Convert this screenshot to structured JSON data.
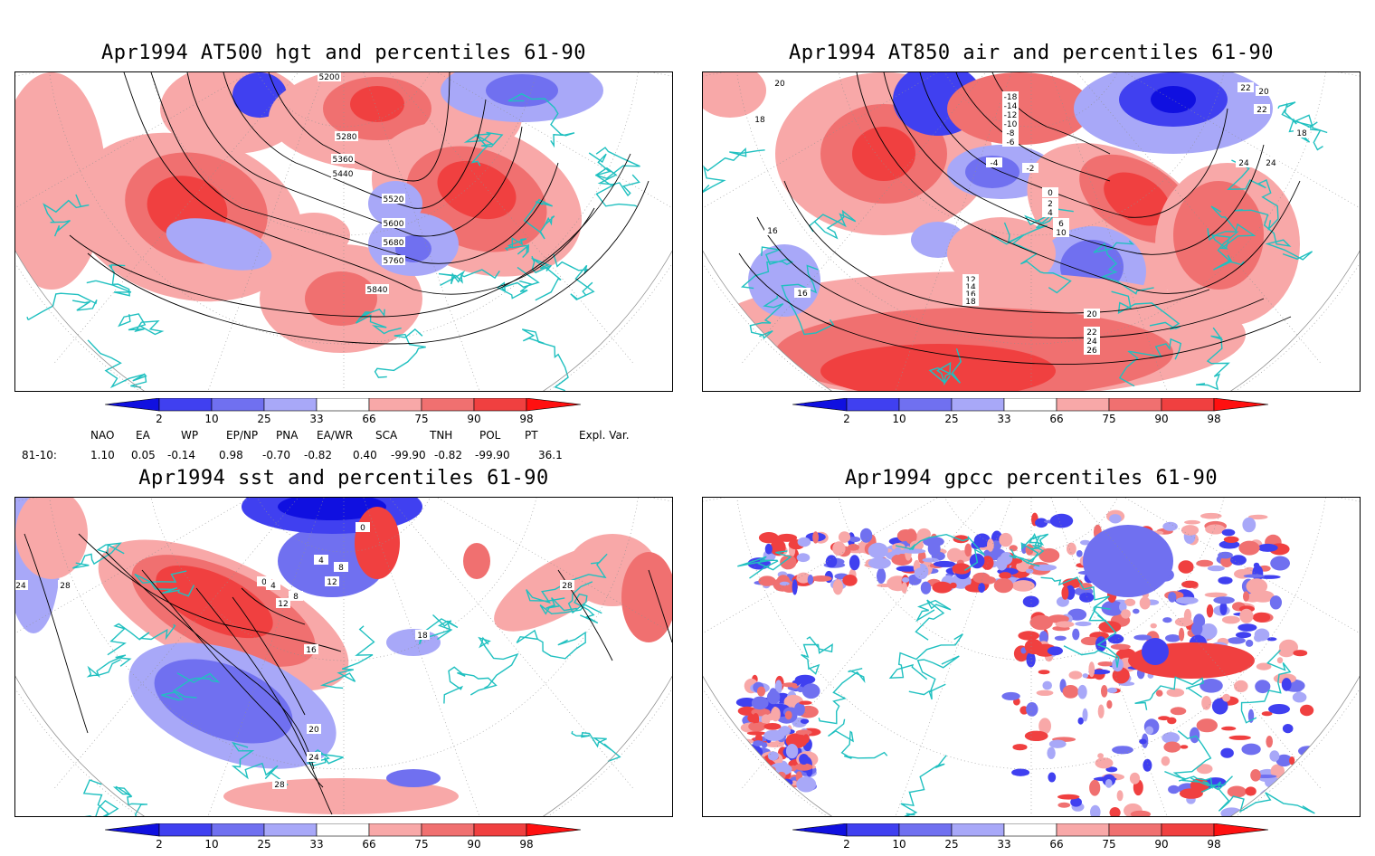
{
  "panels": [
    {
      "id": "hgt",
      "title": "Apr1994 AT500 hgt and percentiles 61-90",
      "contour_labels": [
        "5200",
        "5280",
        "5360",
        "5440",
        "5520",
        "5600",
        "5680",
        "5760",
        "5840"
      ]
    },
    {
      "id": "air",
      "title": "Apr1994 AT850 air and percentiles 61-90",
      "contour_labels": [
        "20",
        "18",
        "16",
        "16",
        "-18",
        "-14",
        "-12",
        "-10",
        "-8",
        "-6",
        "-4",
        "-2",
        "0",
        "2",
        "4",
        "6",
        "10",
        "12",
        "14",
        "16",
        "18",
        "20",
        "22",
        "24",
        "26",
        "24",
        "22",
        "20",
        "22",
        "24",
        "18"
      ]
    },
    {
      "id": "sst",
      "title": "Apr1994 sst and percentiles 61-90",
      "contour_labels": [
        "24",
        "28",
        "0",
        "4",
        "8",
        "12",
        "16",
        "20",
        "24",
        "28",
        "0",
        "4",
        "8",
        "12",
        "18",
        "28"
      ]
    },
    {
      "id": "gpcc",
      "title": "Apr1994 gpcc percentiles 61-90",
      "contour_labels": []
    }
  ],
  "colorbar": {
    "ticks": [
      "2",
      "10",
      "25",
      "33",
      "66",
      "75",
      "90",
      "98"
    ],
    "colors": {
      "deep_blue": "#1010e0",
      "blue": "#4040f0",
      "mid_blue": "#7070f0",
      "light_blue": "#a8a8f8",
      "light_red": "#f8a8a8",
      "mid_red": "#f07070",
      "red": "#f04040",
      "deep_red": "#ff1010"
    }
  },
  "indices": {
    "headers": [
      "NAO",
      "EA",
      "WP",
      "EP/NP",
      "PNA",
      "EA/WR",
      "SCA",
      "TNH",
      "POL",
      "PT",
      "Expl. Var."
    ],
    "row_label": "81-10:",
    "values": [
      "1.10",
      "0.05",
      "-0.14",
      "0.98",
      "-0.70",
      "-0.82",
      "0.40",
      "-99.90",
      "-0.82",
      "-99.90",
      "36.1"
    ]
  },
  "colors": {
    "coastline": "#20c0c0",
    "contour": "#000000",
    "grid": "#909090"
  }
}
